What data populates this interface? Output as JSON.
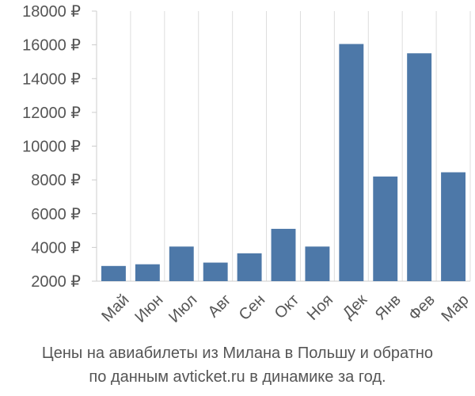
{
  "chart_data": {
    "type": "bar",
    "categories": [
      "Май",
      "Июн",
      "Июл",
      "Авг",
      "Сен",
      "Окт",
      "Ноя",
      "Дек",
      "Янв",
      "Фев",
      "Мар"
    ],
    "values": [
      2900,
      3000,
      4050,
      3100,
      3650,
      5100,
      4050,
      16050,
      8200,
      15500,
      8450
    ],
    "ylim": [
      2000,
      18000
    ],
    "yticks": [
      2000,
      4000,
      6000,
      8000,
      10000,
      12000,
      14000,
      16000,
      18000
    ],
    "ytick_labels": [
      "2000 ₽",
      "4000 ₽",
      "6000 ₽",
      "8000 ₽",
      "10000 ₽",
      "12000 ₽",
      "14000 ₽",
      "16000 ₽",
      "18000 ₽"
    ],
    "grid": "vertical lines between categories",
    "bar_color": "#4d78a8",
    "grid_color": "#dddddd",
    "caption_line1": "Цены на авиабилеты из Милана в Польшу и обратно",
    "caption_line2": "по данным avticket.ru в динамике за год."
  }
}
